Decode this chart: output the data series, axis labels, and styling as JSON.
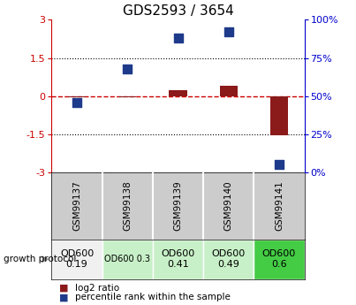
{
  "title": "GDS2593 / 3654",
  "samples": [
    "GSM99137",
    "GSM99138",
    "GSM99139",
    "GSM99140",
    "GSM99141"
  ],
  "log2_ratio": [
    -0.03,
    -0.03,
    0.22,
    0.42,
    -1.55
  ],
  "percentile_rank": [
    46,
    68,
    88,
    92,
    5
  ],
  "left_ylim": [
    -3,
    3
  ],
  "right_ylim": [
    0,
    100
  ],
  "left_yticks": [
    -3,
    -1.5,
    0,
    1.5,
    3
  ],
  "right_yticks": [
    0,
    25,
    50,
    75,
    100
  ],
  "left_yticklabels": [
    "-3",
    "-1.5",
    "0",
    "1.5",
    "3"
  ],
  "right_yticklabels": [
    "0%",
    "25%",
    "50%",
    "75%",
    "100%"
  ],
  "dotted_lines": [
    -1.5,
    1.5
  ],
  "bar_color": "#8B1A1A",
  "dot_color": "#1E3A8A",
  "bar_width": 0.35,
  "dot_size": 55,
  "growth_protocol_label": "growth protocol",
  "protocol_values": [
    "OD600\n0.19",
    "OD600 0.3",
    "OD600\n0.41",
    "OD600\n0.49",
    "OD600\n0.6"
  ],
  "protocol_bg": [
    "#f0f0f0",
    "#c8f0c8",
    "#c8f0c8",
    "#c8f0c8",
    "#44cc44"
  ],
  "protocol_fontsize": [
    8,
    7,
    8,
    8,
    8
  ],
  "sample_bg": "#cccccc",
  "legend_bar_label": "log2 ratio",
  "legend_dot_label": "percentile rank within the sample",
  "background_color": "#ffffff",
  "dashed_line_color": "#cc0000",
  "dot_axis_color": "#0000cc",
  "title_fontsize": 11,
  "tick_fontsize": 8,
  "sample_fontsize": 7.5
}
